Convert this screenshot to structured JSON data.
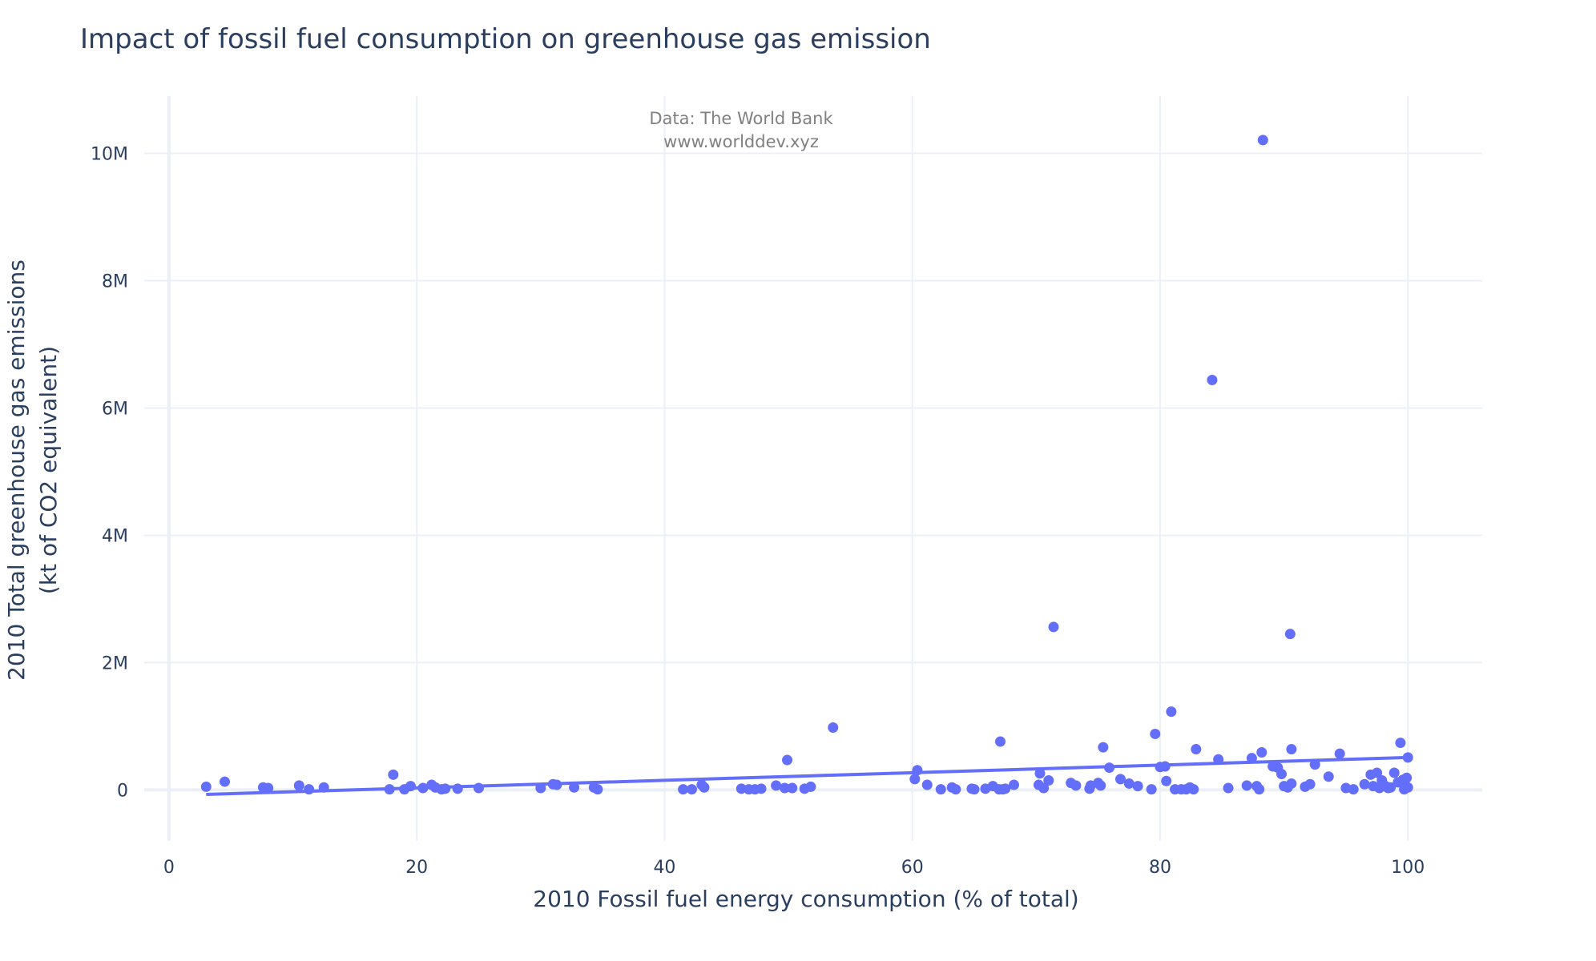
{
  "chart_data": {
    "type": "scatter",
    "title": "Impact of fossil fuel consumption on greenhouse gas emission",
    "xlabel": "2010 Fossil fuel energy consumption (% of total)",
    "ylabel_line1": "2010 Total greenhouse gas emissions",
    "ylabel_line2": "(kt of CO2 equivalent)",
    "annotation_line1": "Data: The World Bank",
    "annotation_line2": "www.worlddev.xyz",
    "xlim": [
      -2,
      106
    ],
    "ylim": [
      -800000,
      10900000
    ],
    "x_ticks": [
      0,
      20,
      40,
      60,
      80,
      100
    ],
    "x_tick_labels": [
      "0",
      "20",
      "40",
      "60",
      "80",
      "100"
    ],
    "y_ticks": [
      0,
      2000000,
      4000000,
      6000000,
      8000000,
      10000000
    ],
    "y_tick_labels": [
      "0",
      "2M",
      "4M",
      "6M",
      "8M",
      "10M"
    ],
    "grid": true,
    "marker_color": "#636efa",
    "trendline": {
      "x": [
        3,
        100
      ],
      "y": [
        -70000,
        510000
      ]
    },
    "points": [
      [
        3,
        50000
      ],
      [
        4.5,
        130000
      ],
      [
        7.6,
        40000
      ],
      [
        8,
        30000
      ],
      [
        10.5,
        70000
      ],
      [
        11.3,
        10000
      ],
      [
        12.5,
        40000
      ],
      [
        17.8,
        10000
      ],
      [
        18.1,
        240000
      ],
      [
        19,
        10000
      ],
      [
        19.5,
        60000
      ],
      [
        20.5,
        30000
      ],
      [
        21.2,
        80000
      ],
      [
        21.5,
        40000
      ],
      [
        22,
        10000
      ],
      [
        22.3,
        20000
      ],
      [
        23.3,
        20000
      ],
      [
        25,
        30000
      ],
      [
        30,
        30000
      ],
      [
        31,
        90000
      ],
      [
        31.3,
        80000
      ],
      [
        32.7,
        40000
      ],
      [
        34.3,
        40000
      ],
      [
        34.6,
        10000
      ],
      [
        41.5,
        10000
      ],
      [
        42.2,
        10000
      ],
      [
        43,
        80000
      ],
      [
        43.2,
        40000
      ],
      [
        46.2,
        20000
      ],
      [
        46.8,
        10000
      ],
      [
        47.3,
        10000
      ],
      [
        47.8,
        20000
      ],
      [
        49,
        70000
      ],
      [
        49.7,
        30000
      ],
      [
        49.9,
        470000
      ],
      [
        50.3,
        30000
      ],
      [
        51.3,
        20000
      ],
      [
        51.8,
        50000
      ],
      [
        53.6,
        980000
      ],
      [
        60.2,
        170000
      ],
      [
        60.4,
        310000
      ],
      [
        61.2,
        80000
      ],
      [
        62.3,
        10000
      ],
      [
        63.2,
        40000
      ],
      [
        63.5,
        10000
      ],
      [
        64.8,
        20000
      ],
      [
        65,
        10000
      ],
      [
        65.9,
        20000
      ],
      [
        66.5,
        60000
      ],
      [
        67,
        10000
      ],
      [
        67.1,
        760000
      ],
      [
        67.3,
        10000
      ],
      [
        67.5,
        20000
      ],
      [
        68.2,
        80000
      ],
      [
        70.2,
        80000
      ],
      [
        70.3,
        260000
      ],
      [
        70.6,
        30000
      ],
      [
        71,
        150000
      ],
      [
        71.4,
        2560000
      ],
      [
        72.8,
        110000
      ],
      [
        73.2,
        70000
      ],
      [
        74.3,
        20000
      ],
      [
        74.4,
        70000
      ],
      [
        75,
        110000
      ],
      [
        75.2,
        70000
      ],
      [
        75.4,
        670000
      ],
      [
        75.9,
        350000
      ],
      [
        76.8,
        170000
      ],
      [
        77.5,
        100000
      ],
      [
        78.2,
        60000
      ],
      [
        79.3,
        10000
      ],
      [
        79.6,
        880000
      ],
      [
        80,
        360000
      ],
      [
        80.4,
        370000
      ],
      [
        80.5,
        140000
      ],
      [
        80.9,
        1230000
      ],
      [
        81.2,
        10000
      ],
      [
        81.7,
        10000
      ],
      [
        82.1,
        10000
      ],
      [
        82.4,
        40000
      ],
      [
        82.7,
        10000
      ],
      [
        82.9,
        640000
      ],
      [
        84.2,
        6440000
      ],
      [
        84.7,
        480000
      ],
      [
        85.5,
        30000
      ],
      [
        87,
        70000
      ],
      [
        87.4,
        500000
      ],
      [
        87.8,
        60000
      ],
      [
        88,
        10000
      ],
      [
        88.2,
        590000
      ],
      [
        88.3,
        10210000
      ],
      [
        89.1,
        370000
      ],
      [
        89.5,
        350000
      ],
      [
        89.8,
        250000
      ],
      [
        90,
        60000
      ],
      [
        90.3,
        40000
      ],
      [
        90.5,
        2450000
      ],
      [
        90.6,
        100000
      ],
      [
        90.6,
        640000
      ],
      [
        91.7,
        50000
      ],
      [
        92.1,
        90000
      ],
      [
        92.5,
        400000
      ],
      [
        93.6,
        210000
      ],
      [
        94.5,
        570000
      ],
      [
        95,
        30000
      ],
      [
        95.6,
        10000
      ],
      [
        96.5,
        90000
      ],
      [
        97,
        240000
      ],
      [
        97.2,
        60000
      ],
      [
        97.5,
        270000
      ],
      [
        97.7,
        30000
      ],
      [
        97.9,
        150000
      ],
      [
        98.2,
        60000
      ],
      [
        98.4,
        30000
      ],
      [
        98.6,
        40000
      ],
      [
        98.9,
        270000
      ],
      [
        99.2,
        120000
      ],
      [
        99.4,
        740000
      ],
      [
        99.6,
        160000
      ],
      [
        99.7,
        10000
      ],
      [
        99.8,
        60000
      ],
      [
        99.9,
        190000
      ],
      [
        100,
        40000
      ],
      [
        100,
        510000
      ]
    ]
  }
}
